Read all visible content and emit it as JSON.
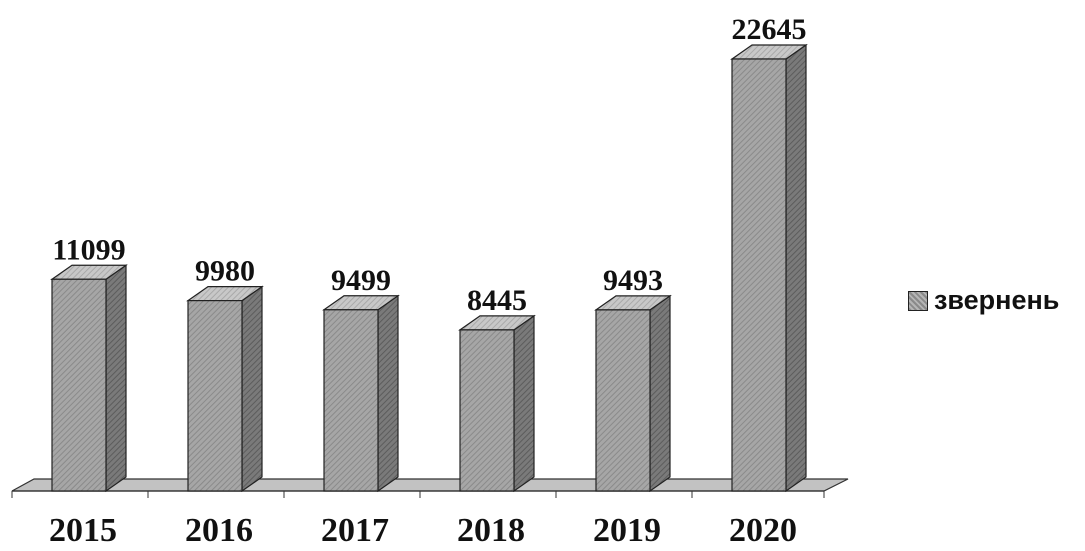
{
  "chart_data": {
    "type": "bar",
    "categories": [
      "2015",
      "2016",
      "2017",
      "2018",
      "2019",
      "2020"
    ],
    "series": [
      {
        "name": "звернень",
        "values": [
          11099,
          9980,
          9499,
          8445,
          9493,
          22645
        ]
      }
    ],
    "title": "",
    "xlabel": "",
    "ylabel": "",
    "ylim": [
      0,
      22645
    ],
    "grid": false,
    "legend_position": "right",
    "colors": {
      "bar_front": "#9c9c9c",
      "bar_side": "#6e6e6e",
      "bar_top": "#c4c4c4",
      "floor": "#bdbdbd"
    }
  },
  "legend": {
    "label": "звернень"
  }
}
